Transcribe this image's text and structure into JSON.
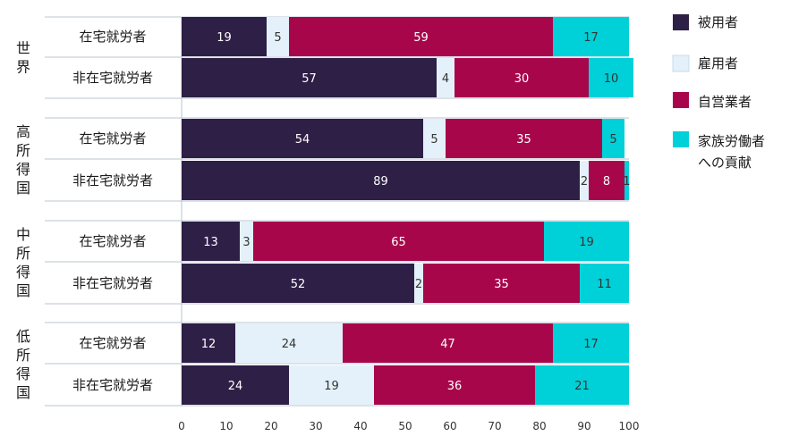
{
  "chart_data": {
    "type": "bar",
    "orientation": "horizontal",
    "stacked": true,
    "xlim": [
      0,
      100
    ],
    "x_ticks": [
      "0",
      "10",
      "20",
      "30",
      "40",
      "50",
      "60",
      "70",
      "80",
      "90",
      "100"
    ],
    "groups": [
      {
        "label": "世界",
        "rows": [
          {
            "label": "在宅就労者",
            "values": [
              19,
              5,
              59,
              17
            ]
          },
          {
            "label": "非在宅就労者",
            "values": [
              57,
              4,
              30,
              10
            ]
          }
        ]
      },
      {
        "label": "高所得国",
        "rows": [
          {
            "label": "在宅就労者",
            "values": [
              54,
              5,
              35,
              5
            ]
          },
          {
            "label": "非在宅就労者",
            "values": [
              89,
              2,
              8,
              1
            ]
          }
        ]
      },
      {
        "label": "中所得国",
        "rows": [
          {
            "label": "在宅就労者",
            "values": [
              13,
              3,
              65,
              19
            ]
          },
          {
            "label": "非在宅就労者",
            "values": [
              52,
              2,
              35,
              11
            ]
          }
        ]
      },
      {
        "label": "低所得国",
        "rows": [
          {
            "label": "在宅就労者",
            "values": [
              12,
              24,
              47,
              17
            ]
          },
          {
            "label": "非在宅就労者",
            "values": [
              24,
              19,
              36,
              21
            ]
          }
        ]
      }
    ],
    "series": [
      {
        "name": "被用者",
        "color": "#2e1f46",
        "label_color": "#ffffff"
      },
      {
        "name": "雇用者",
        "color": "#e4f1fa",
        "label_color": "#333333"
      },
      {
        "name": "自営業者",
        "color": "#a8064b",
        "label_color": "#ffffff"
      },
      {
        "name": "家族労働者への貢献",
        "color": "#00d0d8",
        "label_color": "#333333"
      }
    ],
    "legend_position": "right"
  }
}
